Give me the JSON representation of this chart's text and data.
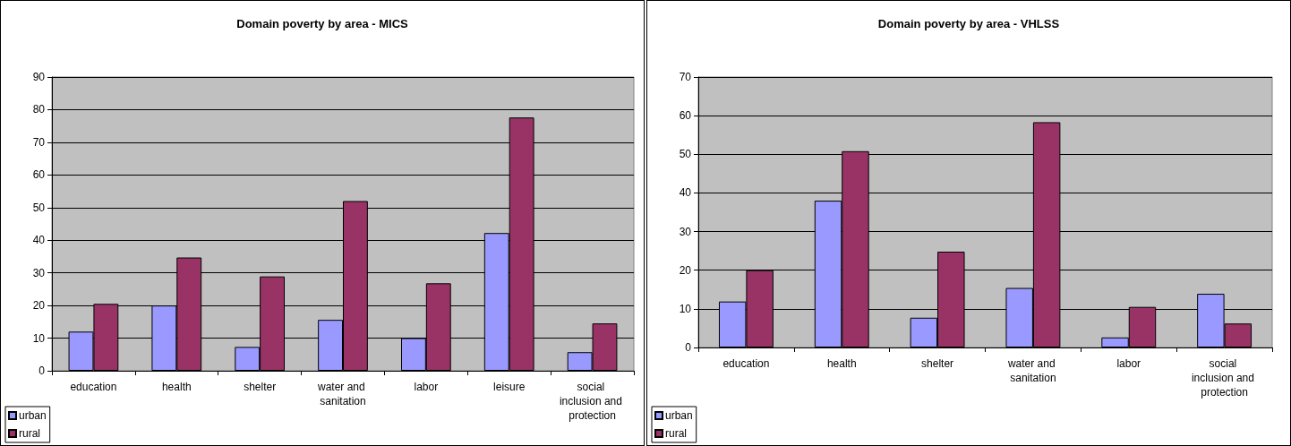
{
  "chart_data": [
    {
      "type": "bar",
      "title": "Domain poverty by area - MICS",
      "categories": [
        "education",
        "health",
        "shelter",
        "water and sanitation",
        "labor",
        "leisure",
        "social inclusion and protection"
      ],
      "series": [
        {
          "name": "urban",
          "color": "#9999ff",
          "values": [
            12,
            20,
            7.3,
            15.6,
            10,
            42.2,
            5.7
          ]
        },
        {
          "name": "rural",
          "color": "#993366",
          "values": [
            20.5,
            34.7,
            28.9,
            52,
            26.8,
            77.6,
            14.5
          ]
        }
      ],
      "ylim": [
        0,
        90
      ],
      "yticks": [
        0,
        10,
        20,
        30,
        40,
        50,
        60,
        70,
        80,
        90
      ],
      "grid": "y",
      "legend": "bottom left"
    },
    {
      "type": "bar",
      "title": "Domain poverty by area - VHLSS",
      "categories": [
        "education",
        "health",
        "shelter",
        "water and sanitation",
        "labor",
        "social inclusion and protection"
      ],
      "series": [
        {
          "name": "urban",
          "color": "#9999ff",
          "values": [
            11.9,
            38,
            7.7,
            15.4,
            2.6,
            13.9
          ]
        },
        {
          "name": "rural",
          "color": "#993366",
          "values": [
            20,
            50.8,
            24.8,
            58.3,
            10.5,
            6.2
          ]
        }
      ],
      "ylim": [
        0,
        70
      ],
      "yticks": [
        0,
        10,
        20,
        30,
        40,
        50,
        60,
        70
      ],
      "grid": "y",
      "legend": "bottom left"
    }
  ]
}
